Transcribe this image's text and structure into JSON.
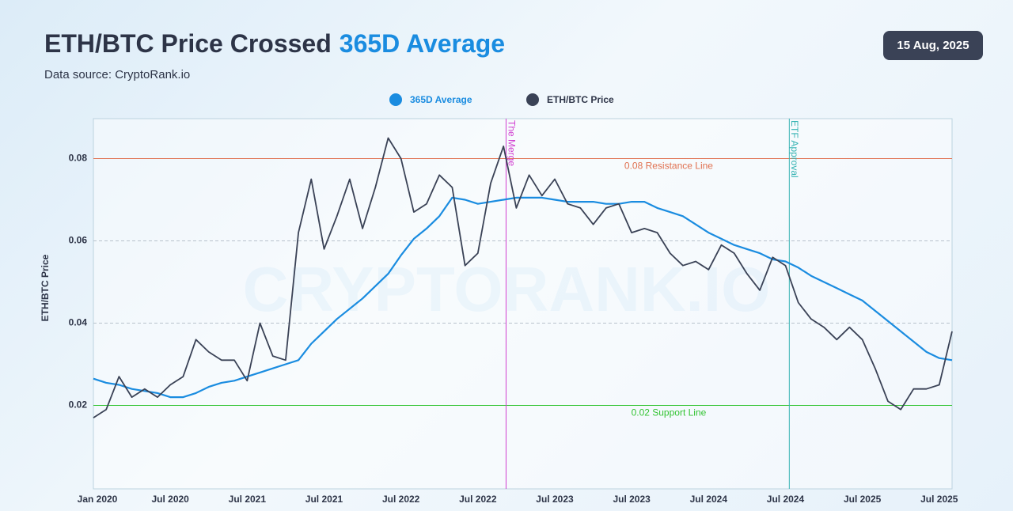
{
  "chart_data": {
    "type": "line",
    "title": "ETH/BTC Price Crossed",
    "title_highlight": "365D Average",
    "subtitle": "Data source: CryptoRank.io",
    "date_badge": "15 Aug, 2025",
    "watermark": "CRYPTORANK.IO",
    "y_label": "ETH/BTC Price",
    "categories": [
      "Jan 2020",
      null,
      null,
      null,
      null,
      null,
      "Jul 2020",
      null,
      null,
      null,
      null,
      null,
      "Jul 2021",
      null,
      null,
      null,
      null,
      null,
      "Jul 2021",
      null,
      null,
      null,
      null,
      null,
      "Jul 2022",
      null,
      null,
      null,
      null,
      null,
      "Jul 2022",
      null,
      null,
      null,
      null,
      null,
      "Jul 2023",
      null,
      null,
      null,
      null,
      null,
      "Jul 2023",
      null,
      null,
      null,
      null,
      null,
      "Jul 2024",
      null,
      null,
      null,
      null,
      null,
      "Jul 2024",
      null,
      null,
      null,
      null,
      null,
      "Jul 2025",
      null,
      null,
      null,
      null,
      null,
      "Jul 2025",
      null
    ],
    "series": [
      {
        "name": "365D Average",
        "color": "#1a8ce0",
        "values": [
          0.0265,
          0.0255,
          0.025,
          0.024,
          0.0235,
          0.023,
          0.022,
          0.022,
          0.023,
          0.0245,
          0.0255,
          0.026,
          0.027,
          0.028,
          0.029,
          0.03,
          0.031,
          0.035,
          0.038,
          0.041,
          0.0435,
          0.046,
          0.049,
          0.052,
          0.0565,
          0.0605,
          0.063,
          0.066,
          0.0705,
          0.07,
          0.069,
          0.0695,
          0.07,
          0.0705,
          0.0705,
          0.0705,
          0.07,
          0.0695,
          0.0695,
          0.0695,
          0.069,
          0.069,
          0.0695,
          0.0695,
          0.068,
          0.067,
          0.066,
          0.064,
          0.062,
          0.0605,
          0.059,
          0.058,
          0.057,
          0.0555,
          0.055,
          0.0535,
          0.0515,
          0.05,
          0.0485,
          0.047,
          0.0455,
          0.043,
          0.0405,
          0.038,
          0.0355,
          0.033,
          0.0315,
          0.031
        ]
      },
      {
        "name": "ETH/BTC Price",
        "color": "#3a4256",
        "values": [
          0.017,
          0.019,
          0.027,
          0.022,
          0.024,
          0.022,
          0.025,
          0.027,
          0.036,
          0.033,
          0.031,
          0.031,
          0.026,
          0.04,
          0.032,
          0.031,
          0.062,
          0.075,
          0.058,
          0.066,
          0.075,
          0.063,
          0.073,
          0.085,
          0.08,
          0.067,
          0.069,
          0.076,
          0.073,
          0.054,
          0.057,
          0.074,
          0.083,
          0.068,
          0.076,
          0.071,
          0.075,
          0.069,
          0.068,
          0.064,
          0.068,
          0.069,
          0.062,
          0.063,
          0.062,
          0.057,
          0.054,
          0.055,
          0.053,
          0.059,
          0.057,
          0.052,
          0.048,
          0.056,
          0.054,
          0.045,
          0.041,
          0.039,
          0.036,
          0.039,
          0.036,
          0.029,
          0.021,
          0.019,
          0.024,
          0.024,
          0.025,
          0.038
        ]
      }
    ],
    "ylim": [
      0,
      0.09
    ],
    "yticks": [
      0.02,
      0.04,
      0.06,
      0.08
    ],
    "grid": true,
    "legend": "top",
    "reference_lines": [
      {
        "text": "0.08 Resistance Line",
        "y": 0.08,
        "color": "#e0704f"
      },
      {
        "text": "0.02 Support Line",
        "y": 0.02,
        "color": "#33c433"
      }
    ],
    "annotations": [
      {
        "text": "The Merge",
        "x": 32.2,
        "color": "#d13fd1"
      },
      {
        "text": "ETF Approval",
        "x": 54.3,
        "color": "#35b3b3"
      }
    ]
  }
}
